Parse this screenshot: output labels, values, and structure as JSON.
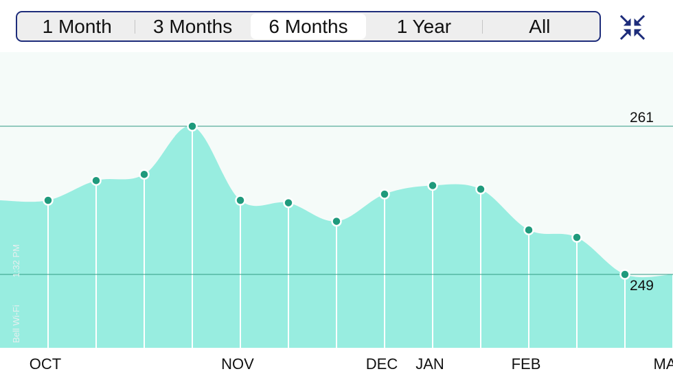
{
  "range_selector": {
    "options": [
      "1 Month",
      "3 Months",
      "6 Months",
      "1 Year",
      "All"
    ],
    "selected_index": 2
  },
  "toolbar": {
    "collapse_icon": "collapse-arrows-icon",
    "collapse_color": "#1d2c7a"
  },
  "status_overlay": {
    "carrier": "Bell Wi-Fi",
    "time": "1:32 PM"
  },
  "colors": {
    "area": "#98ede0",
    "point": "#1f9a7c",
    "reference_line": "#2f9a82",
    "plot_bg": "#f5fbf9"
  },
  "chart_data": {
    "type": "area",
    "x_labels": [
      "OCT",
      "NOV",
      "DEC",
      "JAN",
      "FEB",
      "MAR"
    ],
    "x": [
      1,
      2,
      3,
      4,
      5,
      6,
      7,
      8,
      9,
      10,
      11,
      12,
      13,
      14
    ],
    "x_label_positions": [
      1,
      5,
      8,
      9,
      11,
      14
    ],
    "y": [
      255.0,
      256.6,
      257.1,
      261.0,
      255.0,
      254.8,
      253.3,
      255.5,
      256.2,
      255.9,
      252.6,
      252.0,
      249.0,
      249.0
    ],
    "show_points": [
      true,
      true,
      true,
      true,
      true,
      true,
      true,
      true,
      true,
      true,
      true,
      true,
      true,
      false
    ],
    "reference_lines": [
      {
        "label": "261",
        "value": 261
      },
      {
        "label": "249",
        "value": 249
      }
    ],
    "xlabel": "",
    "ylabel": "",
    "grid": false
  }
}
